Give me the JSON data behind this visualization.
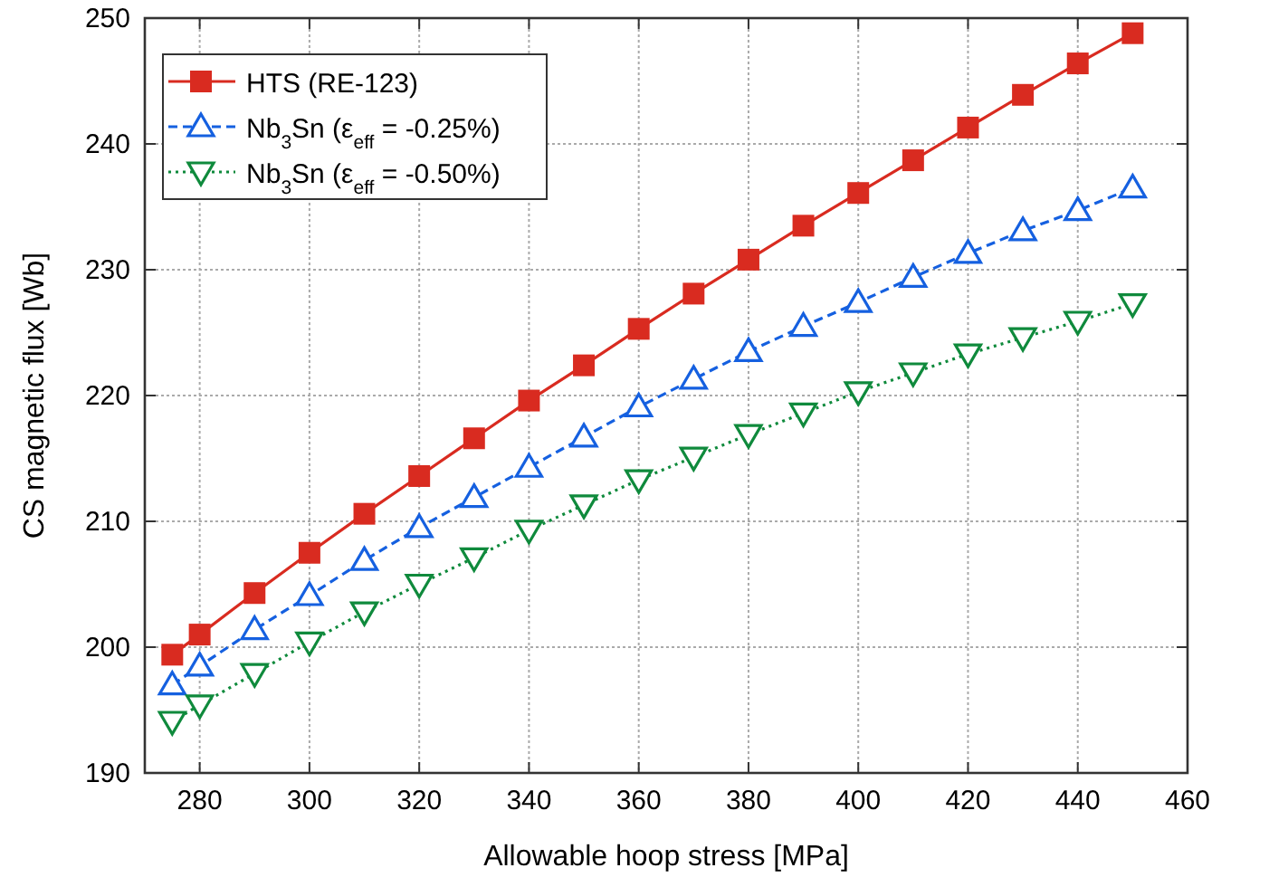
{
  "chart_data": {
    "type": "line",
    "xlabel": "Allowable hoop stress [MPa]",
    "ylabel": "CS magnetic flux [Wb]",
    "x": [
      275,
      280,
      290,
      300,
      310,
      320,
      330,
      340,
      350,
      360,
      370,
      380,
      390,
      400,
      410,
      420,
      430,
      440,
      450
    ],
    "series": [
      {
        "name": "HTS (RE-123)",
        "color": "#d92b20",
        "marker": "square",
        "line_style": "solid",
        "values": [
          199.4,
          201.0,
          204.3,
          207.5,
          210.6,
          213.6,
          216.6,
          219.6,
          222.4,
          225.3,
          228.1,
          230.8,
          233.5,
          236.1,
          238.7,
          241.3,
          243.9,
          246.4,
          248.8
        ]
      },
      {
        "name": "Nb$_{3}$Sn (ε$_{eff}$ = -0.25%)",
        "color": "#1560e0",
        "marker": "triangle",
        "line_style": "dashed",
        "values": [
          197.0,
          198.5,
          201.4,
          204.1,
          206.9,
          209.5,
          211.9,
          214.3,
          216.7,
          219.1,
          221.3,
          223.5,
          225.5,
          227.4,
          229.4,
          231.3,
          233.1,
          234.7,
          236.5
        ]
      },
      {
        "name": "Nb$_{3}$Sn (ε$_{eff}$ = -0.50%)",
        "color": "#0f8a3c",
        "marker": "triangle-down",
        "line_style": "dotted",
        "values": [
          194.1,
          195.4,
          197.9,
          200.4,
          202.8,
          205.0,
          207.1,
          209.3,
          211.3,
          213.3,
          215.1,
          216.9,
          218.6,
          220.3,
          221.8,
          223.3,
          224.6,
          225.9,
          227.3
        ]
      }
    ],
    "xlim": [
      270,
      460
    ],
    "xticks": [
      280,
      300,
      320,
      340,
      360,
      380,
      400,
      420,
      440,
      460
    ],
    "ylim": [
      190,
      250
    ],
    "yticks": [
      190,
      200,
      210,
      220,
      230,
      240,
      250
    ],
    "grid": true,
    "legend": "top left"
  }
}
